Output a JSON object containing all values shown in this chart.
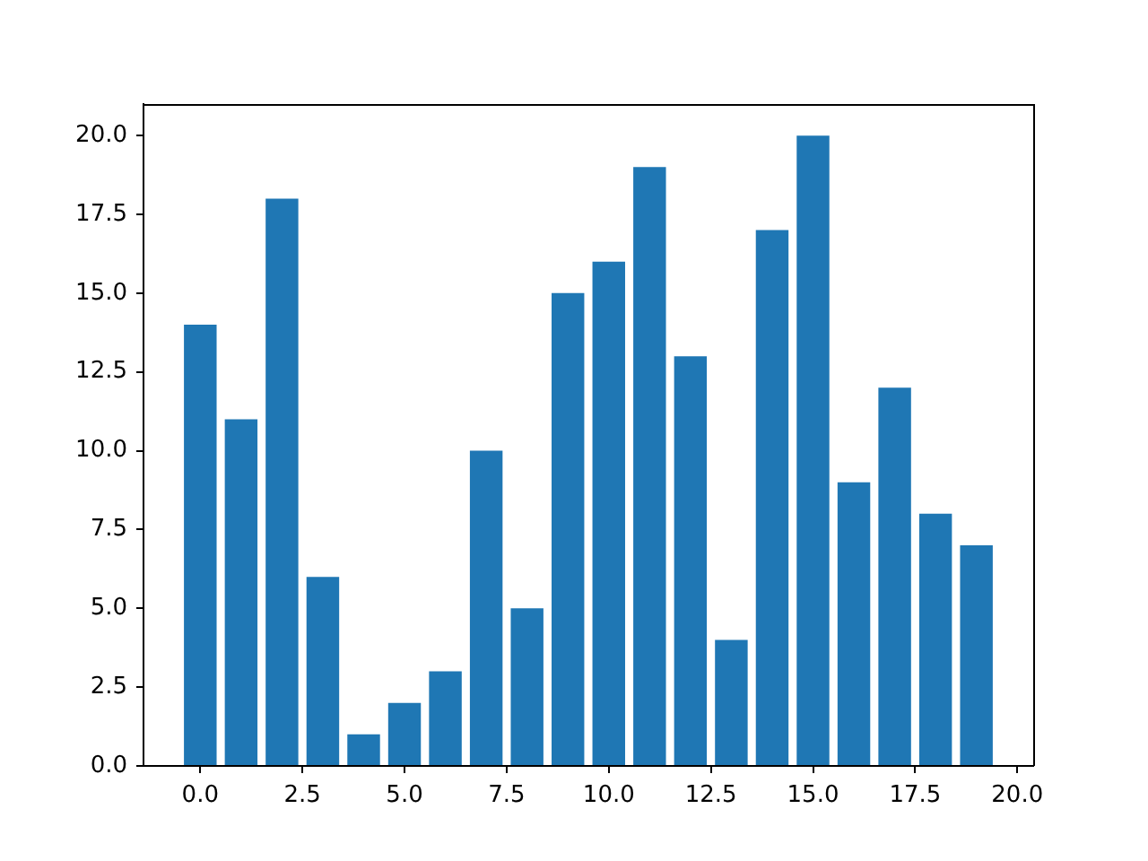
{
  "chart_data": {
    "type": "bar",
    "x": [
      0,
      1,
      2,
      3,
      4,
      5,
      6,
      7,
      8,
      9,
      10,
      11,
      12,
      13,
      14,
      15,
      16,
      17,
      18,
      19
    ],
    "values": [
      14,
      11,
      18,
      6,
      1,
      2,
      3,
      10,
      5,
      15,
      16,
      19,
      13,
      4,
      17,
      20,
      9,
      12,
      8,
      7
    ],
    "color": "#1f77b4",
    "xlim": [
      -1.39,
      20.39
    ],
    "xticks": [
      {
        "value": 0,
        "label": "0.0"
      },
      2.5,
      {
        "value": 5,
        "label": "5.0"
      },
      7.5,
      {
        "value": 10,
        "label": "10.0"
      },
      12.5,
      {
        "value": 15,
        "label": "15.0"
      },
      17.5,
      {
        "value": 20,
        "label": "20.0"
      }
    ],
    "ylim": [
      0,
      21
    ],
    "yticks": [
      {
        "value": 0,
        "label": "0.0"
      },
      2.5,
      {
        "value": 5,
        "label": "5.0"
      },
      7.5,
      {
        "value": 10,
        "label": "10.0"
      },
      12.5,
      {
        "value": 15,
        "label": "15.0"
      },
      17.5,
      {
        "value": 20,
        "label": "20.0"
      }
    ]
  }
}
